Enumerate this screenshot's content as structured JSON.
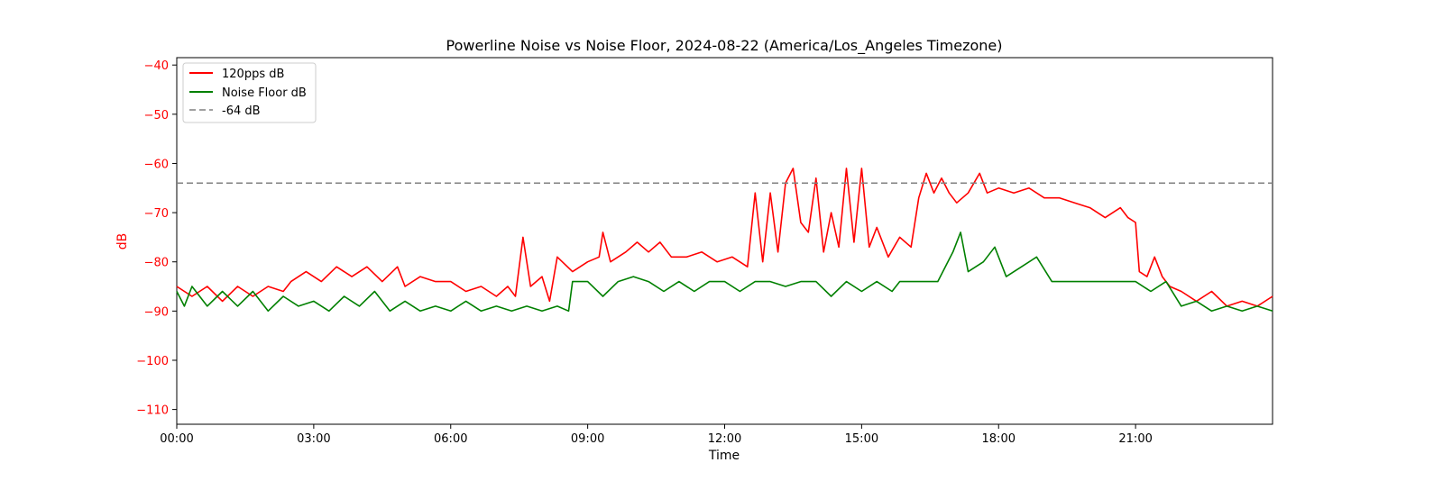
{
  "chart_data": {
    "type": "line",
    "title": "Powerline Noise vs Noise Floor, 2024-08-22 (America/Los_Angeles Timezone)",
    "xlabel": "Time",
    "ylabel": "dB",
    "xlim": [
      "00:00",
      "24:00"
    ],
    "ylim": [
      -113,
      -38.5
    ],
    "x_ticks": [
      "00:00",
      "03:00",
      "06:00",
      "09:00",
      "12:00",
      "15:00",
      "18:00",
      "21:00"
    ],
    "y_ticks": [
      -40,
      -50,
      -60,
      -70,
      -80,
      -90,
      -100,
      -110
    ],
    "grid": false,
    "legend_position": "top-left",
    "colors": {
      "signal": "#ff0000",
      "noise_floor": "#008000",
      "threshold": "#808080",
      "ylabel_color": "#ff0000"
    },
    "threshold": {
      "name": "-64 dB",
      "value": -64
    },
    "series": [
      {
        "name": "120pps dB",
        "color": "#ff0000",
        "points": [
          [
            "00:00",
            -85
          ],
          [
            "00:20",
            -87
          ],
          [
            "00:40",
            -85
          ],
          [
            "01:00",
            -88
          ],
          [
            "01:20",
            -85
          ],
          [
            "01:40",
            -87
          ],
          [
            "02:00",
            -85
          ],
          [
            "02:20",
            -86
          ],
          [
            "02:30",
            -84
          ],
          [
            "02:50",
            -82
          ],
          [
            "03:10",
            -84
          ],
          [
            "03:30",
            -81
          ],
          [
            "03:50",
            -83
          ],
          [
            "04:10",
            -81
          ],
          [
            "04:30",
            -84
          ],
          [
            "04:50",
            -81
          ],
          [
            "05:00",
            -85
          ],
          [
            "05:20",
            -83
          ],
          [
            "05:40",
            -84
          ],
          [
            "06:00",
            -84
          ],
          [
            "06:20",
            -86
          ],
          [
            "06:40",
            -85
          ],
          [
            "07:00",
            -87
          ],
          [
            "07:15",
            -85
          ],
          [
            "07:25",
            -87
          ],
          [
            "07:35",
            -75
          ],
          [
            "07:45",
            -85
          ],
          [
            "08:00",
            -83
          ],
          [
            "08:10",
            -88
          ],
          [
            "08:20",
            -79
          ],
          [
            "08:40",
            -82
          ],
          [
            "09:00",
            -80
          ],
          [
            "09:15",
            -79
          ],
          [
            "09:20",
            -74
          ],
          [
            "09:30",
            -80
          ],
          [
            "09:50",
            -78
          ],
          [
            "10:05",
            -76
          ],
          [
            "10:20",
            -78
          ],
          [
            "10:35",
            -76
          ],
          [
            "10:50",
            -79
          ],
          [
            "11:10",
            -79
          ],
          [
            "11:30",
            -78
          ],
          [
            "11:50",
            -80
          ],
          [
            "12:10",
            -79
          ],
          [
            "12:30",
            -81
          ],
          [
            "12:40",
            -66
          ],
          [
            "12:50",
            -80
          ],
          [
            "13:00",
            -66
          ],
          [
            "13:10",
            -78
          ],
          [
            "13:20",
            -64
          ],
          [
            "13:30",
            -61
          ],
          [
            "13:40",
            -72
          ],
          [
            "13:50",
            -74
          ],
          [
            "14:00",
            -63
          ],
          [
            "14:10",
            -78
          ],
          [
            "14:20",
            -70
          ],
          [
            "14:30",
            -77
          ],
          [
            "14:40",
            -61
          ],
          [
            "14:50",
            -76
          ],
          [
            "15:00",
            -61
          ],
          [
            "15:10",
            -77
          ],
          [
            "15:20",
            -73
          ],
          [
            "15:35",
            -79
          ],
          [
            "15:50",
            -75
          ],
          [
            "16:05",
            -77
          ],
          [
            "16:15",
            -67
          ],
          [
            "16:25",
            -62
          ],
          [
            "16:35",
            -66
          ],
          [
            "16:45",
            -63
          ],
          [
            "16:55",
            -66
          ],
          [
            "17:05",
            -68
          ],
          [
            "17:20",
            -66
          ],
          [
            "17:35",
            -62
          ],
          [
            "17:45",
            -66
          ],
          [
            "18:00",
            -65
          ],
          [
            "18:20",
            -66
          ],
          [
            "18:40",
            -65
          ],
          [
            "19:00",
            -67
          ],
          [
            "19:20",
            -67
          ],
          [
            "19:40",
            -68
          ],
          [
            "20:00",
            -69
          ],
          [
            "20:20",
            -71
          ],
          [
            "20:40",
            -69
          ],
          [
            "20:50",
            -71
          ],
          [
            "21:00",
            -72
          ],
          [
            "21:05",
            -82
          ],
          [
            "21:15",
            -83
          ],
          [
            "21:25",
            -79
          ],
          [
            "21:35",
            -83
          ],
          [
            "21:45",
            -85
          ],
          [
            "22:00",
            -86
          ],
          [
            "22:20",
            -88
          ],
          [
            "22:40",
            -86
          ],
          [
            "23:00",
            -89
          ],
          [
            "23:20",
            -88
          ],
          [
            "23:40",
            -89
          ],
          [
            "24:00",
            -87
          ]
        ]
      },
      {
        "name": "Noise Floor dB",
        "color": "#008000",
        "points": [
          [
            "00:00",
            -86
          ],
          [
            "00:10",
            -89
          ],
          [
            "00:20",
            -85
          ],
          [
            "00:40",
            -89
          ],
          [
            "01:00",
            -86
          ],
          [
            "01:20",
            -89
          ],
          [
            "01:40",
            -86
          ],
          [
            "02:00",
            -90
          ],
          [
            "02:20",
            -87
          ],
          [
            "02:40",
            -89
          ],
          [
            "03:00",
            -88
          ],
          [
            "03:20",
            -90
          ],
          [
            "03:40",
            -87
          ],
          [
            "04:00",
            -89
          ],
          [
            "04:20",
            -86
          ],
          [
            "04:40",
            -90
          ],
          [
            "05:00",
            -88
          ],
          [
            "05:20",
            -90
          ],
          [
            "05:40",
            -89
          ],
          [
            "06:00",
            -90
          ],
          [
            "06:20",
            -88
          ],
          [
            "06:40",
            -90
          ],
          [
            "07:00",
            -89
          ],
          [
            "07:20",
            -90
          ],
          [
            "07:40",
            -89
          ],
          [
            "08:00",
            -90
          ],
          [
            "08:20",
            -89
          ],
          [
            "08:35",
            -90
          ],
          [
            "08:40",
            -84
          ],
          [
            "09:00",
            -84
          ],
          [
            "09:20",
            -87
          ],
          [
            "09:40",
            -84
          ],
          [
            "10:00",
            -83
          ],
          [
            "10:20",
            -84
          ],
          [
            "10:40",
            -86
          ],
          [
            "11:00",
            -84
          ],
          [
            "11:20",
            -86
          ],
          [
            "11:40",
            -84
          ],
          [
            "12:00",
            -84
          ],
          [
            "12:20",
            -86
          ],
          [
            "12:40",
            -84
          ],
          [
            "13:00",
            -84
          ],
          [
            "13:20",
            -85
          ],
          [
            "13:40",
            -84
          ],
          [
            "14:00",
            -84
          ],
          [
            "14:20",
            -87
          ],
          [
            "14:40",
            -84
          ],
          [
            "15:00",
            -86
          ],
          [
            "15:20",
            -84
          ],
          [
            "15:40",
            -86
          ],
          [
            "15:50",
            -84
          ],
          [
            "16:20",
            -84
          ],
          [
            "16:40",
            -84
          ],
          [
            "17:00",
            -78
          ],
          [
            "17:10",
            -74
          ],
          [
            "17:20",
            -82
          ],
          [
            "17:40",
            -80
          ],
          [
            "17:55",
            -77
          ],
          [
            "18:10",
            -83
          ],
          [
            "18:30",
            -81
          ],
          [
            "18:50",
            -79
          ],
          [
            "19:10",
            -84
          ],
          [
            "19:30",
            -84
          ],
          [
            "19:50",
            -84
          ],
          [
            "20:10",
            -84
          ],
          [
            "20:30",
            -84
          ],
          [
            "20:50",
            -84
          ],
          [
            "21:00",
            -84
          ],
          [
            "21:20",
            -86
          ],
          [
            "21:40",
            -84
          ],
          [
            "22:00",
            -89
          ],
          [
            "22:20",
            -88
          ],
          [
            "22:40",
            -90
          ],
          [
            "23:00",
            -89
          ],
          [
            "23:20",
            -90
          ],
          [
            "23:40",
            -89
          ],
          [
            "24:00",
            -90
          ]
        ]
      }
    ]
  }
}
